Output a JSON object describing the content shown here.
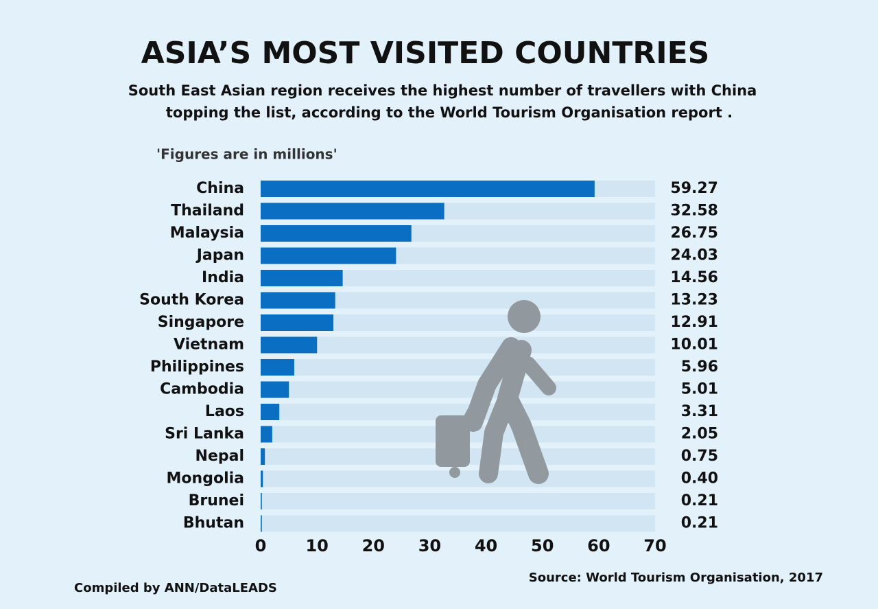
{
  "chart_data": {
    "type": "bar",
    "orientation": "horizontal",
    "title": "ASIA’S MOST VISITED COUNTRIES",
    "subtitle": [
      "South East Asian region receives the highest number of travellers with China",
      "topping the list, according to the World Tourism Organisation report ."
    ],
    "note": "'Figures are in millions'",
    "categories": [
      "China",
      "Thailand",
      "Malaysia",
      "Japan",
      "India",
      "South Korea",
      "Singapore",
      "Vietnam",
      "Philippines",
      "Cambodia",
      "Laos",
      "Sri Lanka",
      "Nepal",
      "Mongolia",
      "Brunei",
      "Bhutan"
    ],
    "values": [
      59.27,
      32.58,
      26.75,
      24.03,
      14.56,
      13.23,
      12.91,
      10.01,
      5.96,
      5.01,
      3.31,
      2.05,
      0.75,
      0.4,
      0.21,
      0.21
    ],
    "value_labels": [
      "59.27",
      "32.58",
      "26.75",
      "24.03",
      "14.56",
      "13.23",
      "12.91",
      "10.01",
      "5.96",
      "5.01",
      "3.31",
      "2.05",
      "0.75",
      "0.40",
      "0.21",
      "0.21"
    ],
    "color": "#0a6fc2",
    "xlim": [
      0,
      70
    ],
    "xticks": [
      0,
      10,
      20,
      30,
      40,
      50,
      60,
      70
    ],
    "credit": "Compiled  by ANN/DataLEADS",
    "source": "Source: World Tourism Organisation, 2017"
  }
}
